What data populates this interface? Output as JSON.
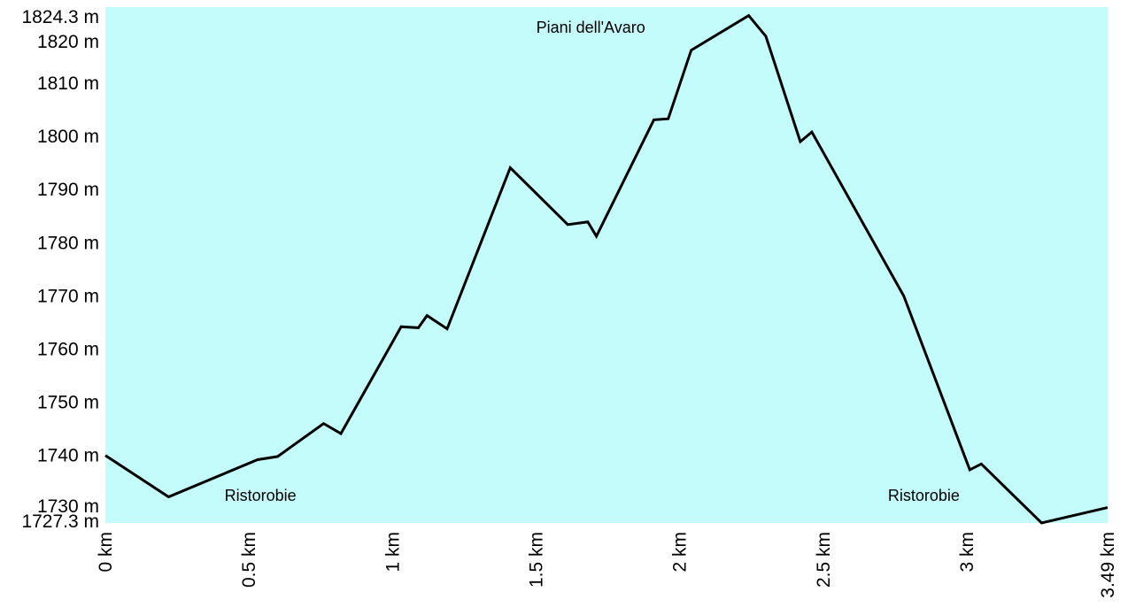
{
  "chart_data": {
    "type": "area",
    "title": "",
    "xlabel": "",
    "ylabel": "",
    "x_unit": "km",
    "y_unit": "m",
    "xlim": [
      0,
      3.49
    ],
    "ylim": [
      1727.3,
      1824.3
    ],
    "grid": false,
    "legend": "none",
    "fill_color": "#c4fbfb",
    "line_color": "#000000",
    "y_tick_labels": [
      "1824.3 m",
      "1820 m",
      "1810 m",
      "1800 m",
      "1790 m",
      "1780 m",
      "1770 m",
      "1760 m",
      "1750 m",
      "1740 m",
      "1730 m",
      "1727.3 m"
    ],
    "y_tick_values": [
      1824.3,
      1820,
      1810,
      1800,
      1790,
      1780,
      1770,
      1760,
      1750,
      1740,
      1730,
      1727.3
    ],
    "x_tick_labels": [
      "0 km",
      "0.5 km",
      "1 km",
      "1.5 km",
      "2 km",
      "2.5 km",
      "3 km",
      "3.49 km"
    ],
    "x_tick_values": [
      0,
      0.5,
      1,
      1.5,
      2,
      2.5,
      3,
      3.49
    ],
    "series": [
      {
        "x": [
          0,
          0.22,
          0.53,
          0.6,
          0.76,
          0.82,
          1.03,
          1.09,
          1.12,
          1.19,
          1.41,
          1.61,
          1.68,
          1.71,
          1.91,
          1.96,
          2.04,
          2.24,
          2.3,
          2.42,
          2.46,
          2.78,
          3.01,
          3.05,
          3.26,
          3.49
        ],
        "y": [
          1740,
          1732.2,
          1739.2,
          1739.8,
          1746,
          1744.1,
          1764.2,
          1764,
          1766.3,
          1763.8,
          1794.1,
          1783.4,
          1783.9,
          1781.2,
          1803.1,
          1803.3,
          1816.2,
          1822.7,
          1818.8,
          1799,
          1800.8,
          1770,
          1737.3,
          1738.4,
          1727.3,
          1730.2
        ]
      }
    ],
    "annotations": [
      {
        "text": "Piani dell'Avaro",
        "x": 1.69,
        "y": 1819.5
      },
      {
        "text": "Ristorobie",
        "x": 0.54,
        "y": 1731.5
      },
      {
        "text": "Ristorobie",
        "x": 2.85,
        "y": 1731.5
      }
    ]
  }
}
